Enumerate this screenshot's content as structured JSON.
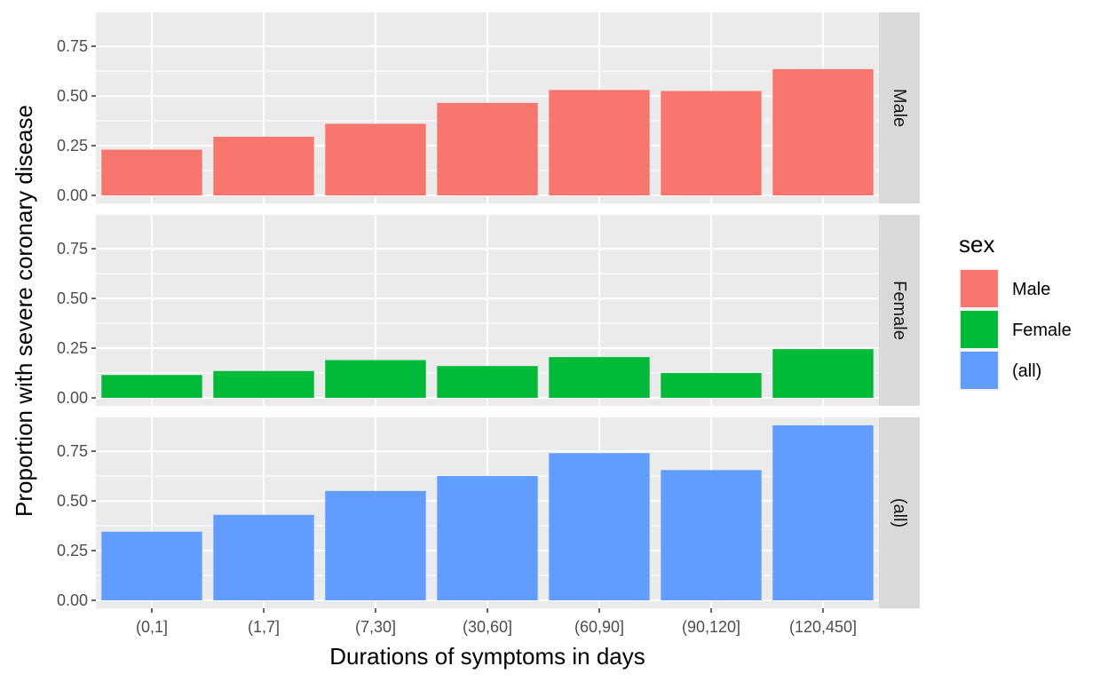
{
  "chart_data": {
    "type": "bar",
    "xlabel": "Durations of symptoms in days",
    "ylabel": "Proportion with severe coronary disease",
    "categories": [
      "(0,1]",
      "(1,7]",
      "(7,30]",
      "(30,60]",
      "(60,90]",
      "(90,120]",
      "(120,450]"
    ],
    "ylim": [
      -0.04,
      0.92
    ],
    "yticks": [
      0.0,
      0.25,
      0.5,
      0.75
    ],
    "ytick_labels": [
      "0.00",
      "0.25",
      "0.50",
      "0.75"
    ],
    "grid": true,
    "legend": {
      "title": "sex",
      "position": "right"
    },
    "series": [
      {
        "name": "Male",
        "color": "#F8766D",
        "values": [
          0.23,
          0.295,
          0.36,
          0.465,
          0.53,
          0.525,
          0.635
        ]
      },
      {
        "name": "Female",
        "color": "#00BA38",
        "values": [
          0.115,
          0.135,
          0.19,
          0.16,
          0.205,
          0.125,
          0.245
        ]
      },
      {
        "name": "(all)",
        "color": "#619CFF",
        "values": [
          0.345,
          0.43,
          0.55,
          0.625,
          0.74,
          0.655,
          0.88
        ]
      }
    ]
  }
}
